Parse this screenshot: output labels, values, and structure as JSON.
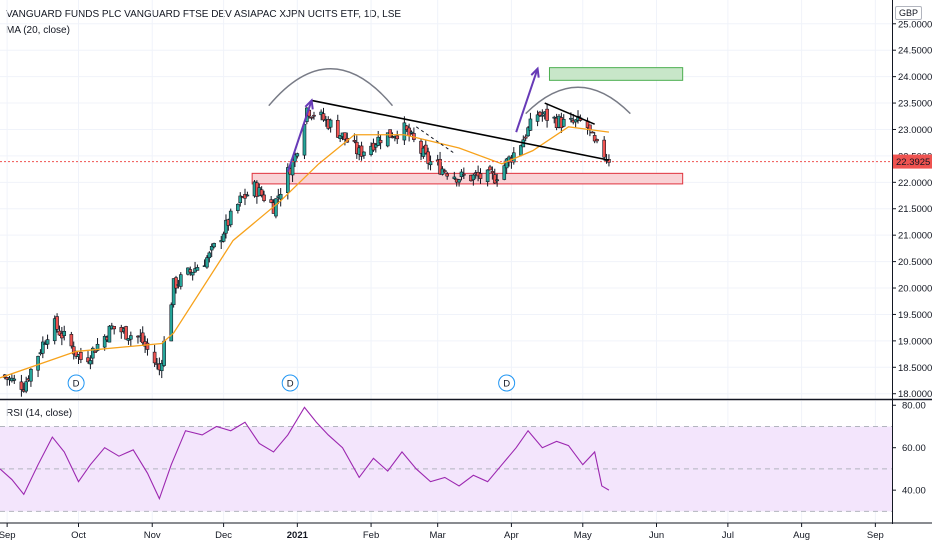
{
  "header": {
    "title": "VANGUARD FUNDS PLC VANGUARD FTSE DEV ASIAPAC XJPN UCITS ETF, 1D, LSE",
    "ma_label": "MA (20, close)",
    "rsi_label": "RSI (14, close)",
    "currency": "GBP",
    "last_price": "22.3925"
  },
  "chart_data": [
    {
      "type": "candlestick",
      "title": "VANGUARD FUNDS PLC VANGUARD FTSE DEV ASIAPAC XJPN UCITS ETF, 1D, LSE",
      "y_ticks": [
        "18.0000",
        "18.5000",
        "19.0000",
        "19.5000",
        "20.0000",
        "20.5000",
        "21.0000",
        "21.5000",
        "22.0000",
        "22.5000",
        "23.0000",
        "23.5000",
        "24.0000",
        "24.5000",
        "25.0000"
      ],
      "ylim": [
        17.9,
        25.45
      ],
      "x_ticks": [
        "Sep",
        "Oct",
        "Nov",
        "Dec",
        "2021",
        "Feb",
        "Mar",
        "Apr",
        "May",
        "Jun",
        "Jul",
        "Aug",
        "Sep"
      ],
      "x_tick_dates": [
        "2020-09-01",
        "2020-10-01",
        "2020-11-01",
        "2020-12-01",
        "2021-01-01",
        "2021-02-01",
        "2021-03-01",
        "2021-04-01",
        "2021-05-01",
        "2021-06-01",
        "2021-07-01",
        "2021-08-01",
        "2021-09-01"
      ],
      "xlim": [
        "2020-08-29",
        "2021-09-08"
      ],
      "close_anchors": [
        [
          "2020-08-29",
          18.35
        ],
        [
          "2020-09-08",
          18.15
        ],
        [
          "2020-09-20",
          19.35
        ],
        [
          "2020-10-03",
          18.6
        ],
        [
          "2020-10-15",
          19.25
        ],
        [
          "2020-10-27",
          19.05
        ],
        [
          "2020-11-04",
          18.45
        ],
        [
          "2020-11-07",
          19.2
        ],
        [
          "2020-11-10",
          20.05
        ],
        [
          "2020-11-25",
          20.6
        ],
        [
          "2020-12-08",
          21.65
        ],
        [
          "2020-12-14",
          21.9
        ],
        [
          "2020-12-22",
          21.55
        ],
        [
          "2020-12-31",
          22.5
        ],
        [
          "2021-01-05",
          23.4
        ],
        [
          "2021-01-15",
          23.1
        ],
        [
          "2021-01-27",
          22.55
        ],
        [
          "2021-02-05",
          22.85
        ],
        [
          "2021-02-15",
          23.0
        ],
        [
          "2021-02-25",
          22.4
        ],
        [
          "2021-03-10",
          22.1
        ],
        [
          "2021-03-25",
          22.1
        ],
        [
          "2021-04-03",
          22.6
        ],
        [
          "2021-04-12",
          23.3
        ],
        [
          "2021-04-24",
          23.1
        ],
        [
          "2021-05-02",
          23.15
        ],
        [
          "2021-05-06",
          22.7
        ],
        [
          "2021-05-12",
          22.45
        ]
      ],
      "moving_average": {
        "name": "MA (20, close)",
        "color": "#f7a21b",
        "points": [
          [
            "2020-08-29",
            18.3
          ],
          [
            "2020-09-30",
            18.8
          ],
          [
            "2020-11-05",
            18.95
          ],
          [
            "2020-11-10",
            19.15
          ],
          [
            "2020-12-05",
            20.9
          ],
          [
            "2020-12-25",
            21.65
          ],
          [
            "2021-01-10",
            22.35
          ],
          [
            "2021-01-25",
            22.9
          ],
          [
            "2021-02-15",
            22.9
          ],
          [
            "2021-03-10",
            22.65
          ],
          [
            "2021-03-28",
            22.35
          ],
          [
            "2021-04-10",
            22.6
          ],
          [
            "2021-04-25",
            23.05
          ],
          [
            "2021-05-12",
            22.95
          ]
        ]
      },
      "last_price": 22.3925,
      "last_price_label": "22.3925",
      "drawings": {
        "support_zone": {
          "from": "2020-12-13",
          "to": "2021-06-12",
          "low": 21.97,
          "high": 22.17,
          "fill": "#f9d3d6",
          "stroke": "#e0333e"
        },
        "target_zone": {
          "from": "2021-04-17",
          "to": "2021-06-12",
          "low": 23.93,
          "high": 24.17,
          "fill": "#c8e6c9",
          "stroke": "#4caf50"
        },
        "trendline_upper": [
          [
            "2021-01-07",
            23.55
          ],
          [
            "2021-05-12",
            22.42
          ]
        ],
        "trendline_right": [
          [
            "2021-04-15",
            23.5
          ],
          [
            "2021-05-06",
            23.1
          ]
        ],
        "dashed_line": [
          [
            "2021-02-20",
            23.05
          ],
          [
            "2021-03-08",
            22.55
          ]
        ],
        "pole_arrow_1": [
          [
            "2020-12-28",
            22.2
          ],
          [
            "2021-01-07",
            23.55
          ]
        ],
        "pole_arrow_2": [
          [
            "2021-04-03",
            22.95
          ],
          [
            "2021-04-12",
            24.15
          ]
        ],
        "arcs": [
          {
            "from": "2020-12-20",
            "to": "2021-02-10",
            "base": 23.45,
            "peak": 24.15
          },
          {
            "from": "2021-04-07",
            "to": "2021-05-21",
            "base": 23.3,
            "peak": 23.8
          }
        ],
        "dividend_markers": {
          "label": "D",
          "dates": [
            "2020-09-30",
            "2020-12-29",
            "2021-03-30"
          ]
        }
      }
    },
    {
      "type": "line",
      "title": "RSI (14, close)",
      "y_ticks": [
        "40.00",
        "60.00",
        "80.00"
      ],
      "ylim": [
        25,
        82
      ],
      "band": {
        "upper": 70,
        "lower": 30,
        "fill": "#f3e5fc"
      },
      "series": [
        {
          "name": "RSI (14, close)",
          "color": "#9c27b0",
          "points": [
            [
              "2020-08-29",
              50
            ],
            [
              "2020-09-03",
              45
            ],
            [
              "2020-09-08",
              38
            ],
            [
              "2020-09-14",
              52
            ],
            [
              "2020-09-20",
              65
            ],
            [
              "2020-09-25",
              58
            ],
            [
              "2020-10-01",
              44
            ],
            [
              "2020-10-06",
              52
            ],
            [
              "2020-10-12",
              60
            ],
            [
              "2020-10-18",
              56
            ],
            [
              "2020-10-24",
              59
            ],
            [
              "2020-10-30",
              48
            ],
            [
              "2020-11-04",
              36
            ],
            [
              "2020-11-09",
              52
            ],
            [
              "2020-11-15",
              68
            ],
            [
              "2020-11-22",
              66
            ],
            [
              "2020-11-28",
              70
            ],
            [
              "2020-12-04",
              68
            ],
            [
              "2020-12-10",
              72
            ],
            [
              "2020-12-16",
              62
            ],
            [
              "2020-12-22",
              58
            ],
            [
              "2020-12-28",
              66
            ],
            [
              "2021-01-04",
              79
            ],
            [
              "2021-01-09",
              72
            ],
            [
              "2021-01-14",
              66
            ],
            [
              "2021-01-20",
              60
            ],
            [
              "2021-01-27",
              46
            ],
            [
              "2021-02-02",
              55
            ],
            [
              "2021-02-08",
              49
            ],
            [
              "2021-02-14",
              58
            ],
            [
              "2021-02-20",
              50
            ],
            [
              "2021-02-26",
              44
            ],
            [
              "2021-03-04",
              46
            ],
            [
              "2021-03-10",
              42
            ],
            [
              "2021-03-16",
              47
            ],
            [
              "2021-03-22",
              44
            ],
            [
              "2021-03-28",
              52
            ],
            [
              "2021-04-03",
              60
            ],
            [
              "2021-04-08",
              68
            ],
            [
              "2021-04-14",
              60
            ],
            [
              "2021-04-20",
              63
            ],
            [
              "2021-04-25",
              61
            ],
            [
              "2021-05-01",
              52
            ],
            [
              "2021-05-06",
              58
            ],
            [
              "2021-05-09",
              42
            ],
            [
              "2021-05-12",
              40
            ]
          ]
        }
      ]
    }
  ],
  "colors": {
    "up": "#26a69a",
    "down": "#ef5350",
    "candle_outline": "#131722",
    "axis": "#131722",
    "drawing_arrow": "#673ab7",
    "arc": "#787b86",
    "last_price_line": "#ef5350",
    "dividend_blue": "#2196f3"
  }
}
